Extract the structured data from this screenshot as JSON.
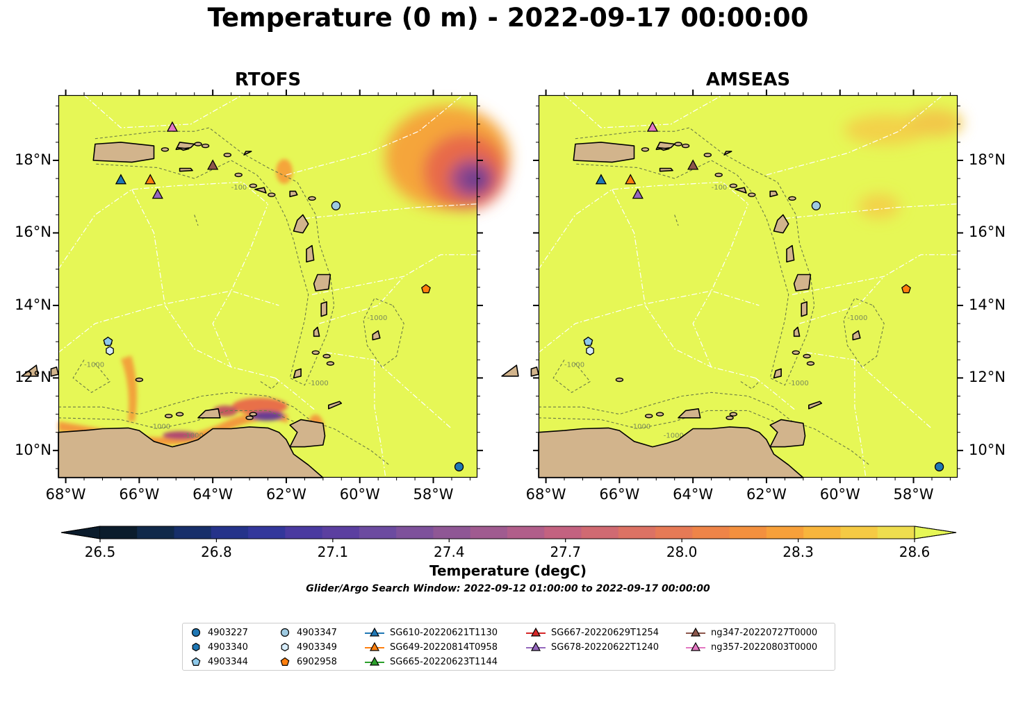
{
  "title": "Temperature (0 m) - 2022-09-17 00:00:00",
  "panels": [
    {
      "title": "RTOFS",
      "model": "RTOFS"
    },
    {
      "title": "AMSEAS",
      "model": "AMSEAS"
    }
  ],
  "map_extent": {
    "lon": [
      -68.2,
      -56.8
    ],
    "lat": [
      9.25,
      19.8
    ]
  },
  "lat_ticks": [
    "18°N",
    "16°N",
    "14°N",
    "12°N",
    "10°N"
  ],
  "lat_values": [
    18,
    16,
    14,
    12,
    10
  ],
  "lon_ticks": [
    "68°W",
    "66°W",
    "64°W",
    "62°W",
    "60°W",
    "58°W"
  ],
  "lon_values": [
    -68,
    -66,
    -64,
    -62,
    -60,
    -58
  ],
  "colorbar": {
    "label": "Temperature (degC)",
    "ticks": [
      "26.5",
      "26.8",
      "27.1",
      "27.4",
      "27.7",
      "28.0",
      "28.3",
      "28.6"
    ],
    "tick_values": [
      26.5,
      26.8,
      27.1,
      27.4,
      27.7,
      28.0,
      28.3,
      28.6
    ],
    "vmin": 26.5,
    "vmax": 28.6,
    "extend": "both",
    "colormap": "thermal"
  },
  "contour_labels": [
    "-100",
    "-1000"
  ],
  "search_window": "Glider/Argo Search Window: 2022-09-12 01:00:00 to 2022-09-17 00:00:00",
  "colors": {
    "land": "#d2b48c",
    "ocean_warm": "#e6f756",
    "background": "#ffffff"
  },
  "legend": {
    "columns": [
      [
        {
          "label": "4903227",
          "marker": "circle",
          "color": "#1f77b4"
        },
        {
          "label": "4903340",
          "marker": "hexagon",
          "color": "#1f77b4"
        },
        {
          "label": "4903344",
          "marker": "pentagon",
          "color": "#8ec9ea"
        }
      ],
      [
        {
          "label": "4903347",
          "marker": "circle",
          "color": "#9ecae1"
        },
        {
          "label": "4903349",
          "marker": "hexagon",
          "color": "#d6ecfa"
        },
        {
          "label": "6902958",
          "marker": "pentagon",
          "color": "#ff7f0e"
        }
      ],
      [
        {
          "label": "SG610-20220621T1130",
          "marker": "triangle-line",
          "color": "#1f77b4"
        },
        {
          "label": "SG649-20220814T0958",
          "marker": "triangle-line",
          "color": "#ff7f0e"
        },
        {
          "label": "SG665-20220623T1144",
          "marker": "triangle-line",
          "color": "#2ca02c"
        }
      ],
      [
        {
          "label": "SG667-20220629T1254",
          "marker": "triangle-line",
          "color": "#d62728"
        },
        {
          "label": "SG678-20220622T1240",
          "marker": "triangle-line",
          "color": "#9467bd"
        }
      ],
      [
        {
          "label": "ng347-20220727T0000",
          "marker": "triangle-line",
          "color": "#8c564b"
        },
        {
          "label": "ng357-20220803T0000",
          "marker": "triangle-line",
          "color": "#e377c2"
        }
      ]
    ]
  },
  "platforms": [
    {
      "id": "4903227",
      "type": "argo",
      "marker": "circle",
      "color": "#1f77b4",
      "lon": -57.3,
      "lat": 9.55
    },
    {
      "id": "4903340",
      "type": "argo",
      "marker": "hexagon",
      "color": "#1f77b4",
      "lon": -66.85,
      "lat": 13.0
    },
    {
      "id": "4903344",
      "type": "argo",
      "marker": "pentagon",
      "color": "#8ec9ea",
      "lon": -66.85,
      "lat": 13.0
    },
    {
      "id": "4903347",
      "type": "argo",
      "marker": "circle",
      "color": "#9ecae1",
      "lon": -60.65,
      "lat": 16.75
    },
    {
      "id": "4903349",
      "type": "argo",
      "marker": "hexagon",
      "color": "#d6ecfa",
      "lon": -66.8,
      "lat": 12.75
    },
    {
      "id": "6902958",
      "type": "argo",
      "marker": "pentagon",
      "color": "#ff7f0e",
      "lon": -58.2,
      "lat": 14.45
    },
    {
      "id": "SG610-20220621T1130",
      "type": "glider",
      "marker": "triangle",
      "color": "#1f77b4",
      "lon": -66.5,
      "lat": 17.45
    },
    {
      "id": "SG649-20220814T0958",
      "type": "glider",
      "marker": "triangle",
      "color": "#ff7f0e",
      "lon": -65.7,
      "lat": 17.45
    },
    {
      "id": "SG678-20220622T1240",
      "type": "glider",
      "marker": "triangle",
      "color": "#9467bd",
      "lon": -65.5,
      "lat": 17.05
    },
    {
      "id": "ng347-20220727T0000",
      "type": "glider",
      "marker": "triangle",
      "color": "#8c564b",
      "lon": -64.0,
      "lat": 17.85
    },
    {
      "id": "ng357-20220803T0000",
      "type": "glider",
      "marker": "triangle",
      "color": "#e377c2",
      "lon": -65.1,
      "lat": 18.9
    }
  ]
}
